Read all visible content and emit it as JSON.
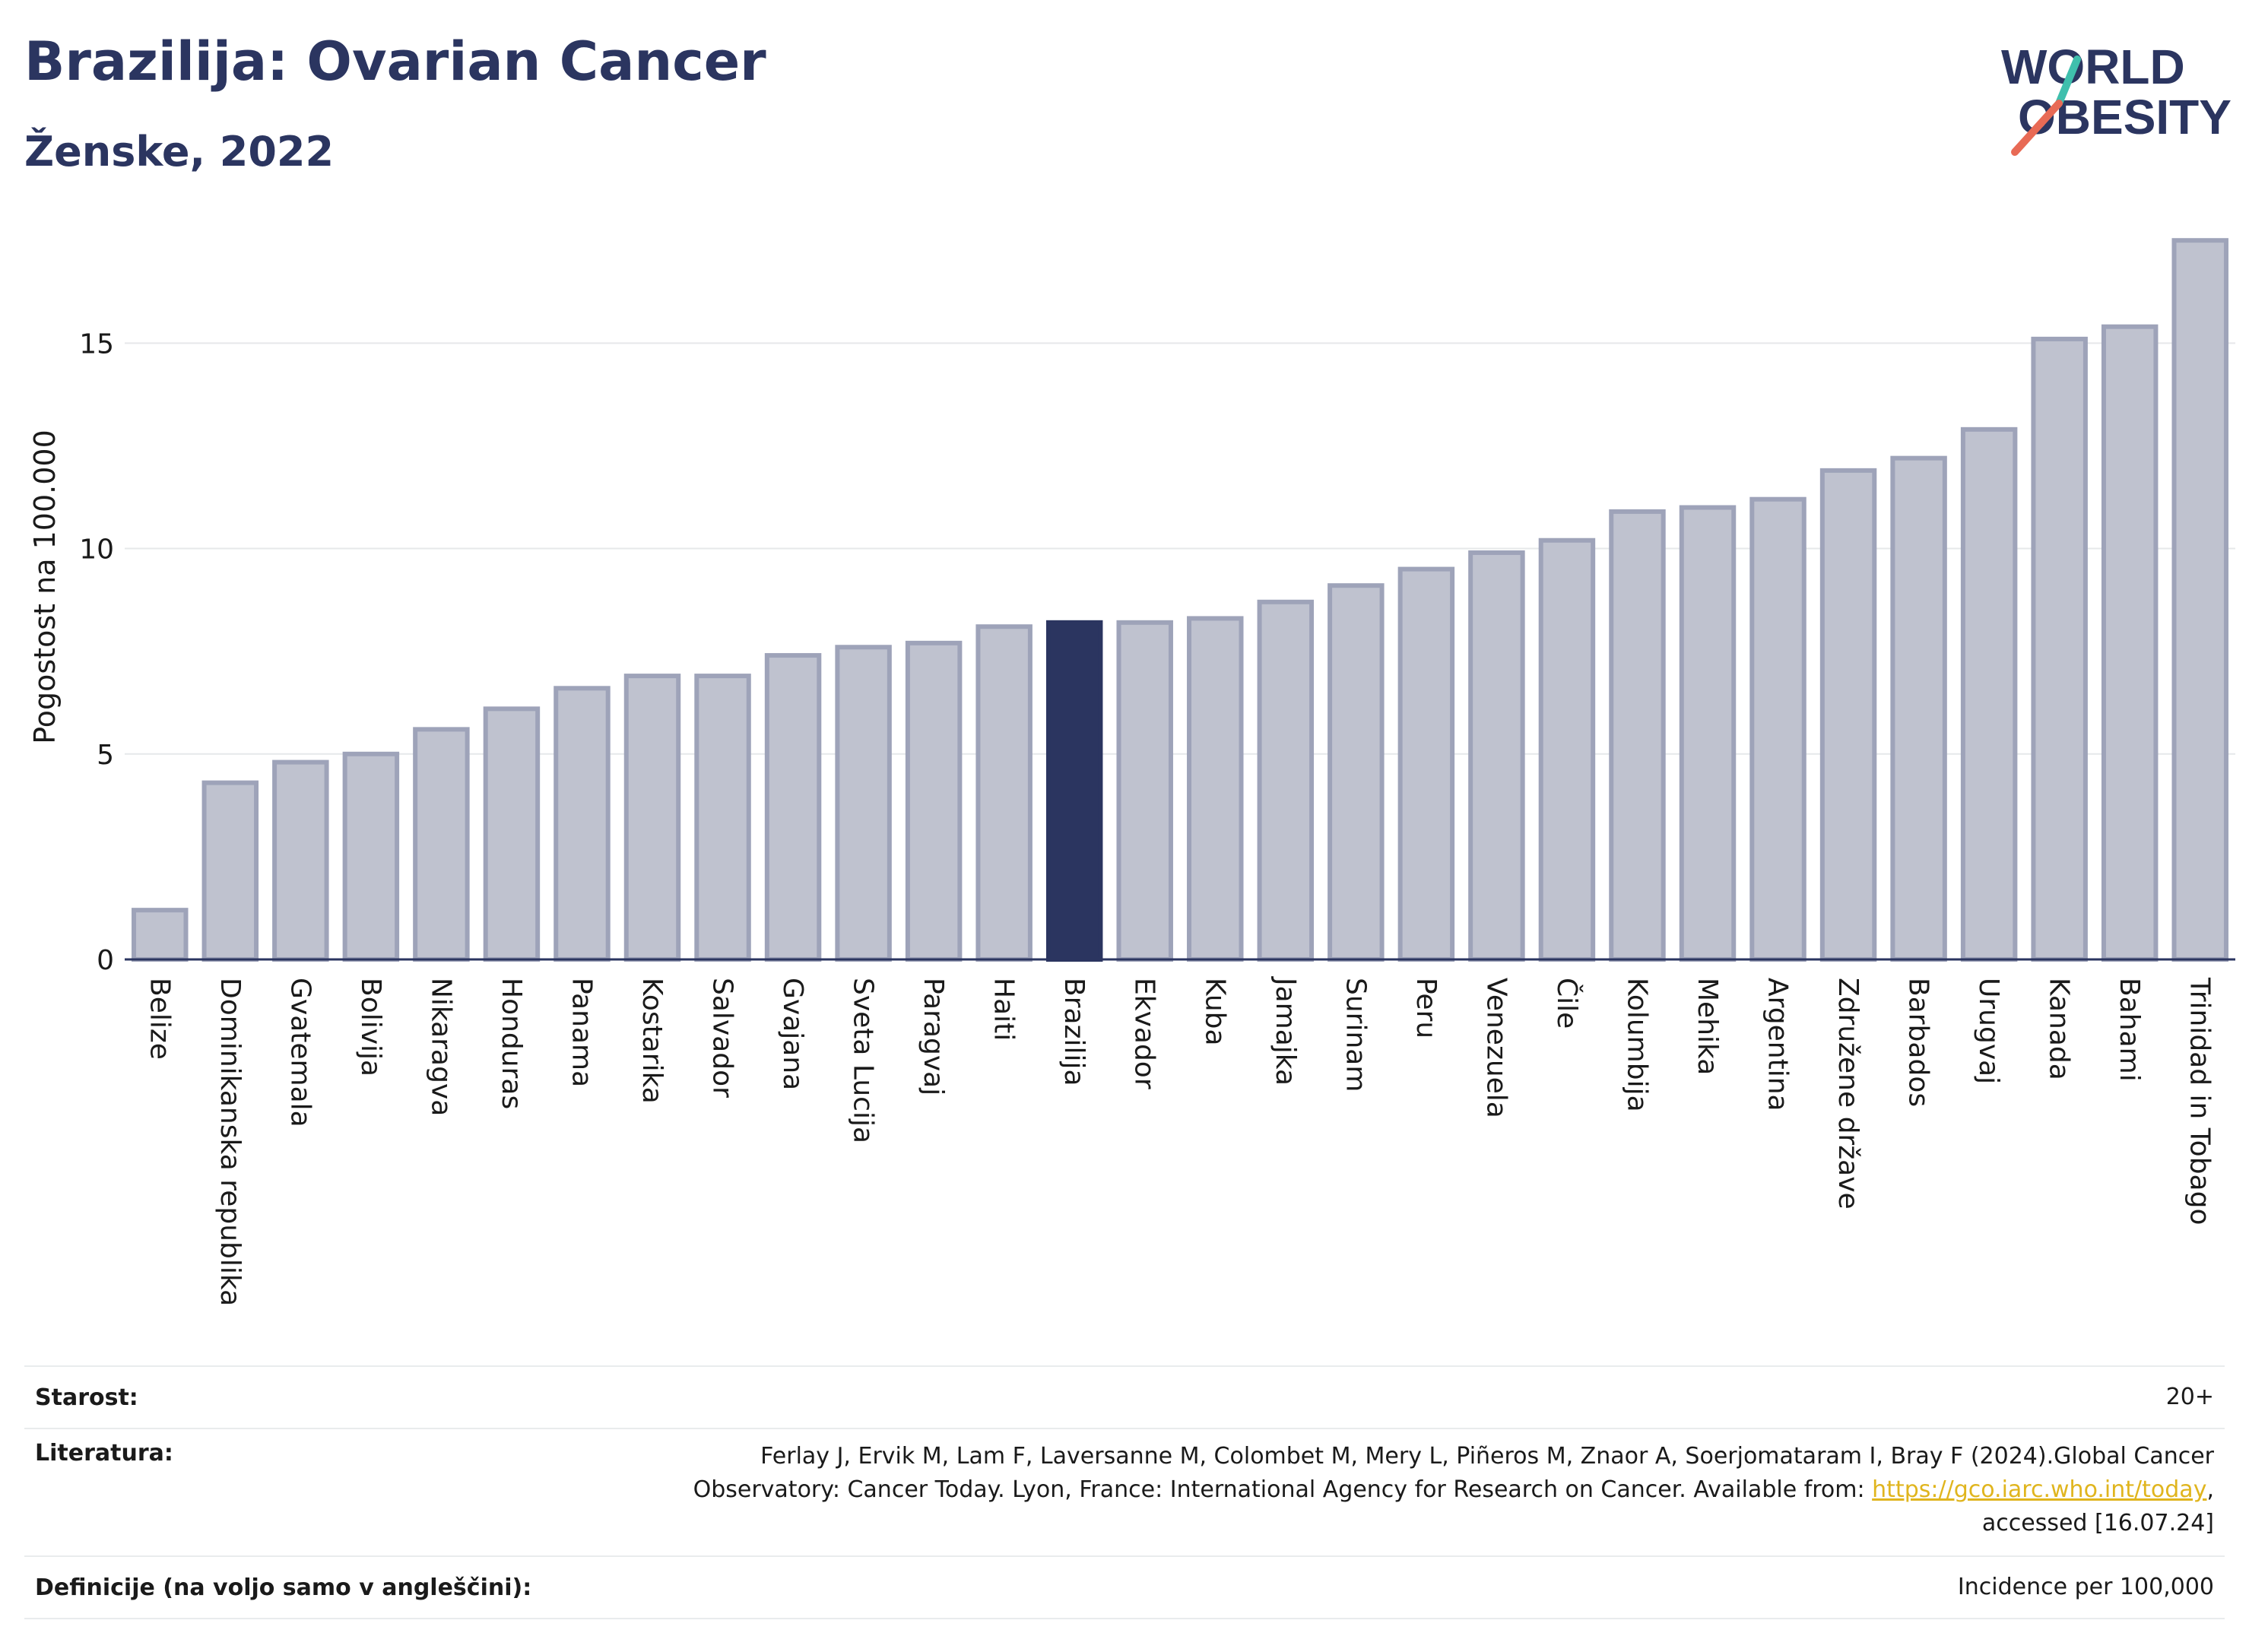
{
  "header": {
    "title": "Brazilija: Ovarian Cancer",
    "subtitle": "Ženske, 2022"
  },
  "logo": {
    "line1": "WORLD",
    "line2": "OBESITY"
  },
  "colors": {
    "highlight": "#2b3560",
    "bar_fill": "#bfc2cf",
    "bar_stroke": "#9ea3b9",
    "title": "#2b3560",
    "logo_teal": "#3fbfad",
    "logo_red": "#e86a55",
    "link": "#e0b51e"
  },
  "chart_data": {
    "type": "bar",
    "ylabel": "Pogostost na 100.000",
    "xlabel": "",
    "ylim": [
      0,
      17.8
    ],
    "yticks": [
      0,
      5,
      10,
      15
    ],
    "grid": true,
    "highlight": "Brazilija",
    "categories": [
      "Belize",
      "Dominikanska republika",
      "Gvatemala",
      "Bolivija",
      "Nikaragva",
      "Honduras",
      "Panama",
      "Kostarika",
      "Salvador",
      "Gvajana",
      "Sveta Lucija",
      "Paragvaj",
      "Haiti",
      "Brazilija",
      "Ekvador",
      "Kuba",
      "Jamajka",
      "Surinam",
      "Peru",
      "Venezuela",
      "Čile",
      "Kolumbija",
      "Mehika",
      "Argentina",
      "Združene države",
      "Barbados",
      "Urugvaj",
      "Kanada",
      "Bahami",
      "Trinidad in Tobago"
    ],
    "values": [
      1.2,
      4.3,
      4.8,
      5.0,
      5.6,
      6.1,
      6.6,
      6.9,
      6.9,
      7.4,
      7.6,
      7.7,
      8.1,
      8.2,
      8.2,
      8.3,
      8.7,
      9.1,
      9.5,
      9.9,
      10.2,
      10.9,
      11.0,
      11.2,
      11.9,
      12.2,
      12.9,
      15.1,
      15.4,
      17.5
    ]
  },
  "meta": {
    "age_label": "Starost:",
    "age_value": "20+",
    "lit_label": "Literatura:",
    "lit_text_1": "Ferlay J, Ervik M, Lam F, Laversanne M, Colombet M, Mery L, Piñeros M, Znaor A, Soerjomataram I, Bray F (2024).Global Cancer",
    "lit_text_2": "Observatory: Cancer Today. Lyon, France: International Agency for Research on Cancer. Available from: ",
    "lit_link": "https://gco.iarc.who.int/today",
    "lit_text_3": ",",
    "lit_text_4": "accessed [16.07.24]",
    "def_label": "Definicije (na voljo samo v angleščini):",
    "def_value": "Incidence per 100,000"
  }
}
